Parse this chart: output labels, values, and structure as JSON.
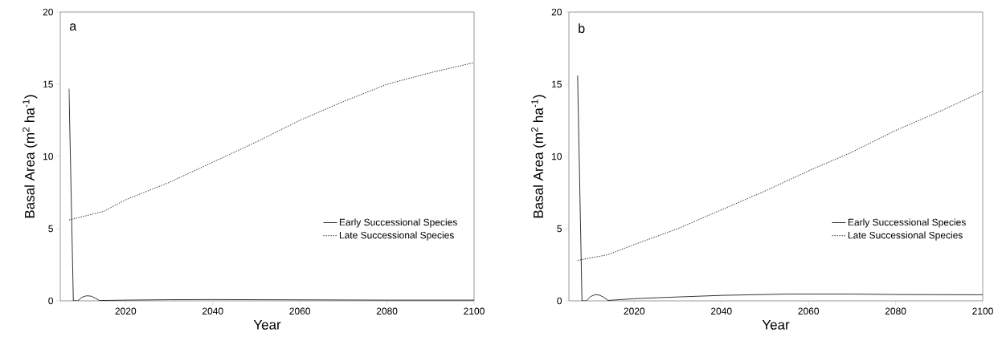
{
  "chart_data": [
    {
      "type": "line",
      "annotations": [
        "a"
      ],
      "xlabel": "Year",
      "ylabel": "Basal Area (m$^{2}$ ha$^{-1}$)",
      "xlim": [
        2005,
        2100
      ],
      "ylim": [
        0,
        20
      ],
      "xticks": [
        2020,
        2040,
        2060,
        2080,
        2100
      ],
      "yticks": [
        0,
        5,
        10,
        15,
        20
      ],
      "legend": "bottom right",
      "marker": "none",
      "series": [
        {
          "name": "Early Successional Species",
          "color": "#000000",
          "line_style": "solid",
          "x": [
            2007,
            2008,
            2009,
            2010,
            2011,
            2012,
            2013,
            2014,
            2020,
            2030,
            2040,
            2060,
            2080,
            2100
          ],
          "values": [
            14.7,
            0,
            0,
            0.25,
            0.35,
            0.33,
            0.2,
            0.02,
            0.05,
            0.08,
            0.09,
            0.07,
            0.05,
            0.05
          ]
        },
        {
          "name": "Late Successional Species",
          "color": "#000000",
          "line_style": "dotted",
          "x": [
            2007,
            2015,
            2020,
            2030,
            2040,
            2050,
            2060,
            2070,
            2080,
            2090,
            2100
          ],
          "values": [
            5.6,
            6.2,
            7.0,
            8.2,
            9.6,
            11.0,
            12.5,
            13.8,
            15.0,
            15.8,
            16.5
          ]
        }
      ]
    },
    {
      "type": "line",
      "annotations": [
        "b"
      ],
      "xlabel": "Year",
      "ylabel": "Basal Area (m$^{2}$ ha$^{-1}$)",
      "xlim": [
        2005,
        2100
      ],
      "ylim": [
        0,
        20
      ],
      "xticks": [
        2020,
        2040,
        2060,
        2080,
        2100
      ],
      "yticks": [
        0,
        5,
        10,
        15,
        20
      ],
      "legend": "bottom right",
      "marker": "none",
      "series": [
        {
          "name": "Early Successional Species",
          "color": "#000000",
          "line_style": "solid",
          "x": [
            2007,
            2008,
            2009,
            2010,
            2011,
            2012,
            2013,
            2014,
            2020,
            2030,
            2040,
            2055,
            2060,
            2070,
            2080,
            2100
          ],
          "values": [
            15.6,
            0,
            0,
            0.3,
            0.43,
            0.4,
            0.25,
            0.03,
            0.15,
            0.27,
            0.38,
            0.47,
            0.47,
            0.47,
            0.44,
            0.42
          ]
        },
        {
          "name": "Late Successional Species",
          "color": "#000000",
          "line_style": "dotted",
          "x": [
            2007,
            2014,
            2020,
            2030,
            2040,
            2050,
            2060,
            2070,
            2080,
            2090,
            2100
          ],
          "values": [
            2.8,
            3.2,
            3.9,
            5.0,
            6.3,
            7.6,
            9.0,
            10.3,
            11.8,
            13.1,
            14.5
          ]
        }
      ]
    }
  ]
}
